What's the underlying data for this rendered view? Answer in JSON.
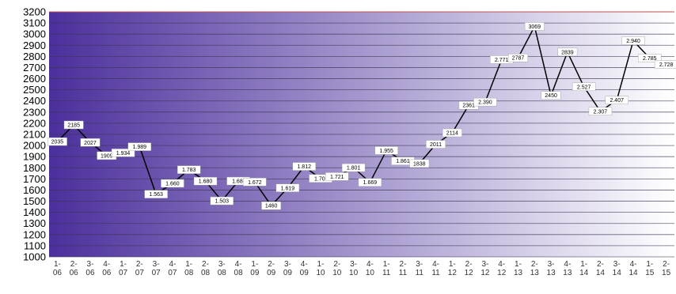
{
  "colors": {
    "gradient_dark": "#4b2f9c",
    "gradient_light": "#ffffff",
    "gridline": "#3a3550",
    "line": "#000000",
    "label_box": "#ffffff",
    "plot_border": "#c05050"
  },
  "chart_data": {
    "type": "line",
    "title": "",
    "xlabel": "",
    "ylabel": "",
    "ylim": [
      1000,
      3200
    ],
    "ytick_step": 100,
    "grid": true,
    "legend": "none",
    "categories": [
      "1-\n06",
      "2-\n06",
      "3-\n06",
      "4-\n06",
      "1-\n07",
      "2-\n07",
      "3-\n07",
      "4-\n07",
      "1-\n08",
      "2-\n08",
      "3-\n08",
      "4-\n08",
      "1-\n09",
      "2-\n09",
      "3-\n09",
      "4-\n09",
      "1-\n10",
      "2-\n10",
      "3-\n10",
      "4-\n10",
      "1-\n11",
      "2-\n11",
      "3-\n11",
      "4-\n11",
      "1-\n12",
      "2-\n12",
      "3-\n12",
      "4-\n12",
      "1-\n13",
      "2-\n13",
      "3-\n13",
      "4-\n13",
      "1-\n14",
      "2-\n14",
      "3-\n14",
      "4-\n14",
      "1-\n15",
      "2-\n15"
    ],
    "series": [
      {
        "values": [
          2035,
          2185,
          2027,
          1909,
          1934,
          1989,
          1563,
          1660,
          1783,
          1680,
          1503,
          1681,
          1672,
          1460,
          1619,
          1812,
          1704,
          1721,
          1801,
          1669,
          1955,
          1861,
          1838,
          2011,
          2114,
          2361,
          2390,
          2771,
          2787,
          3069,
          2450,
          2839,
          2527,
          2307,
          2407,
          2940,
          2785,
          2728
        ],
        "labels": [
          "2035",
          "2185",
          "2027",
          "1909",
          "1.934",
          "1.989",
          "1.563",
          "1.660",
          "1.783",
          "1.680",
          "1.503",
          "1.68·",
          "1.672",
          "1460",
          "1.619",
          "1.812",
          "1.70·",
          "1.721",
          "1.801",
          "1.669",
          "1.955",
          "1.861",
          "1838",
          "2011",
          "2114",
          "2361",
          "2.390",
          "2.771",
          "2787",
          "3069",
          "2450",
          "2839",
          "2.527",
          "2.307",
          "2.407",
          "2.940",
          "2.785",
          "2.728"
        ]
      }
    ]
  }
}
